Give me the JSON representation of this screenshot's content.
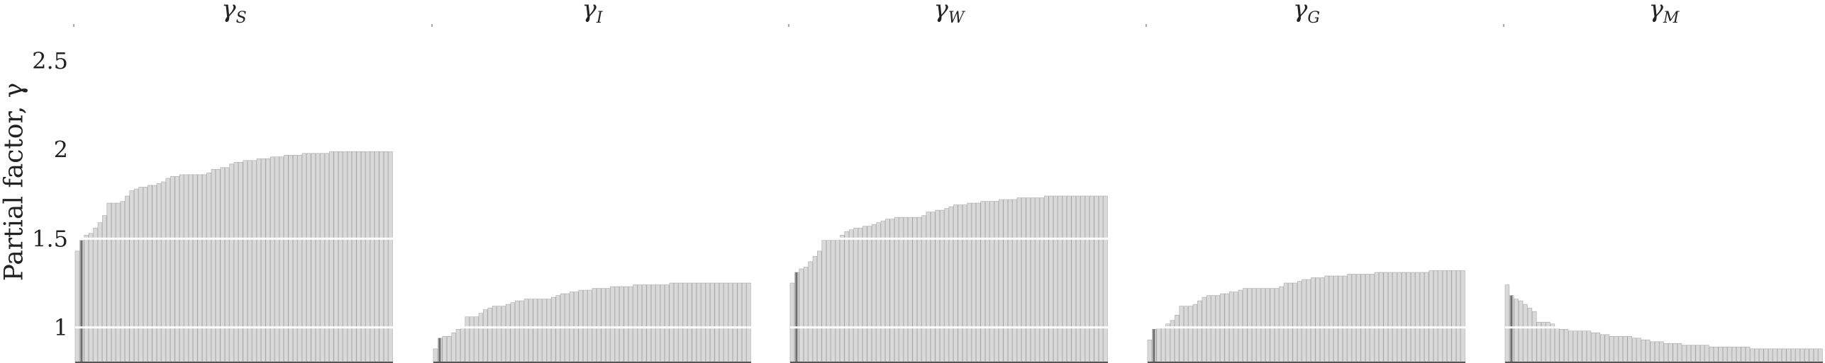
{
  "chart_data": {
    "type": "bar",
    "ylabel": "Partial factor, γ",
    "ylim": [
      0.8,
      2.7
    ],
    "yticks": [
      {
        "value": 1,
        "label": "1"
      },
      {
        "value": 1.5,
        "label": "1.5"
      },
      {
        "value": 2,
        "label": "2"
      },
      {
        "value": 2.5,
        "label": "2.5"
      }
    ],
    "grid": true,
    "panels": [
      {
        "title_symbol": "γ",
        "title_subscript": "S",
        "values": [
          1.43,
          1.49,
          1.52,
          1.53,
          1.56,
          1.59,
          1.63,
          1.7,
          1.7,
          1.7,
          1.71,
          1.74,
          1.77,
          1.78,
          1.79,
          1.79,
          1.8,
          1.8,
          1.81,
          1.82,
          1.84,
          1.85,
          1.85,
          1.86,
          1.86,
          1.86,
          1.86,
          1.86,
          1.86,
          1.87,
          1.89,
          1.89,
          1.9,
          1.9,
          1.92,
          1.93,
          1.93,
          1.94,
          1.94,
          1.94,
          1.95,
          1.95,
          1.95,
          1.96,
          1.96,
          1.96,
          1.97,
          1.97,
          1.97,
          1.97,
          1.98,
          1.98,
          1.98,
          1.98,
          1.98,
          1.98,
          1.99,
          1.99,
          1.99,
          1.99,
          1.99,
          1.99,
          1.99,
          1.99,
          1.99,
          1.99,
          1.99,
          1.99,
          1.99,
          1.99
        ]
      },
      {
        "title_symbol": "γ",
        "title_subscript": "I",
        "values": [
          0.88,
          0.94,
          0.95,
          0.95,
          0.97,
          0.99,
          1.0,
          1.06,
          1.06,
          1.06,
          1.08,
          1.1,
          1.11,
          1.12,
          1.12,
          1.12,
          1.13,
          1.14,
          1.15,
          1.15,
          1.16,
          1.16,
          1.16,
          1.16,
          1.16,
          1.16,
          1.17,
          1.18,
          1.19,
          1.19,
          1.2,
          1.2,
          1.21,
          1.21,
          1.21,
          1.22,
          1.22,
          1.22,
          1.22,
          1.23,
          1.23,
          1.23,
          1.23,
          1.23,
          1.24,
          1.24,
          1.24,
          1.24,
          1.24,
          1.24,
          1.24,
          1.24,
          1.25,
          1.25,
          1.25,
          1.25,
          1.25,
          1.25,
          1.25,
          1.25,
          1.25,
          1.25,
          1.25,
          1.25,
          1.25,
          1.25,
          1.25,
          1.25,
          1.25,
          1.25
        ]
      },
      {
        "title_symbol": "γ",
        "title_subscript": "W",
        "values": [
          1.25,
          1.31,
          1.33,
          1.34,
          1.37,
          1.4,
          1.43,
          1.49,
          1.49,
          1.49,
          1.5,
          1.52,
          1.54,
          1.55,
          1.56,
          1.56,
          1.57,
          1.57,
          1.58,
          1.59,
          1.6,
          1.61,
          1.61,
          1.62,
          1.62,
          1.62,
          1.62,
          1.62,
          1.62,
          1.63,
          1.65,
          1.65,
          1.66,
          1.66,
          1.67,
          1.68,
          1.69,
          1.69,
          1.69,
          1.7,
          1.7,
          1.7,
          1.71,
          1.71,
          1.71,
          1.71,
          1.72,
          1.72,
          1.72,
          1.72,
          1.73,
          1.73,
          1.73,
          1.73,
          1.73,
          1.73,
          1.74,
          1.74,
          1.74,
          1.74,
          1.74,
          1.74,
          1.74,
          1.74,
          1.74,
          1.74,
          1.74,
          1.74,
          1.74,
          1.74
        ]
      },
      {
        "title_symbol": "γ",
        "title_subscript": "G",
        "values": [
          0.93,
          0.99,
          1.0,
          1.0,
          1.02,
          1.04,
          1.07,
          1.12,
          1.12,
          1.12,
          1.13,
          1.15,
          1.17,
          1.18,
          1.18,
          1.18,
          1.19,
          1.19,
          1.2,
          1.2,
          1.21,
          1.22,
          1.22,
          1.22,
          1.22,
          1.22,
          1.22,
          1.22,
          1.22,
          1.23,
          1.25,
          1.25,
          1.25,
          1.26,
          1.27,
          1.27,
          1.28,
          1.28,
          1.28,
          1.29,
          1.29,
          1.29,
          1.29,
          1.29,
          1.3,
          1.3,
          1.3,
          1.3,
          1.3,
          1.3,
          1.31,
          1.31,
          1.31,
          1.31,
          1.31,
          1.31,
          1.31,
          1.31,
          1.31,
          1.31,
          1.31,
          1.31,
          1.32,
          1.32,
          1.32,
          1.32,
          1.32,
          1.32,
          1.32,
          1.32
        ]
      },
      {
        "title_symbol": "γ",
        "title_subscript": "M",
        "values": [
          1.24,
          1.18,
          1.16,
          1.15,
          1.13,
          1.11,
          1.09,
          1.03,
          1.03,
          1.03,
          1.02,
          1.0,
          0.99,
          0.99,
          0.98,
          0.98,
          0.98,
          0.98,
          0.98,
          0.97,
          0.97,
          0.96,
          0.96,
          0.95,
          0.95,
          0.95,
          0.95,
          0.95,
          0.94,
          0.94,
          0.93,
          0.93,
          0.92,
          0.92,
          0.92,
          0.91,
          0.91,
          0.91,
          0.91,
          0.9,
          0.9,
          0.9,
          0.9,
          0.9,
          0.9,
          0.89,
          0.89,
          0.89,
          0.89,
          0.89,
          0.89,
          0.89,
          0.89,
          0.89,
          0.88,
          0.88,
          0.88,
          0.88,
          0.88,
          0.88,
          0.88,
          0.88,
          0.88,
          0.88,
          0.88,
          0.88,
          0.88,
          0.88,
          0.88,
          0.88
        ]
      }
    ]
  },
  "colors": {
    "bar": "#d9d9d9",
    "bar_edge": "#a8a8a8",
    "highlight_bar": "#6e6e6e",
    "grid": "#ffffff",
    "axis": "#555555",
    "text": "#222222"
  }
}
